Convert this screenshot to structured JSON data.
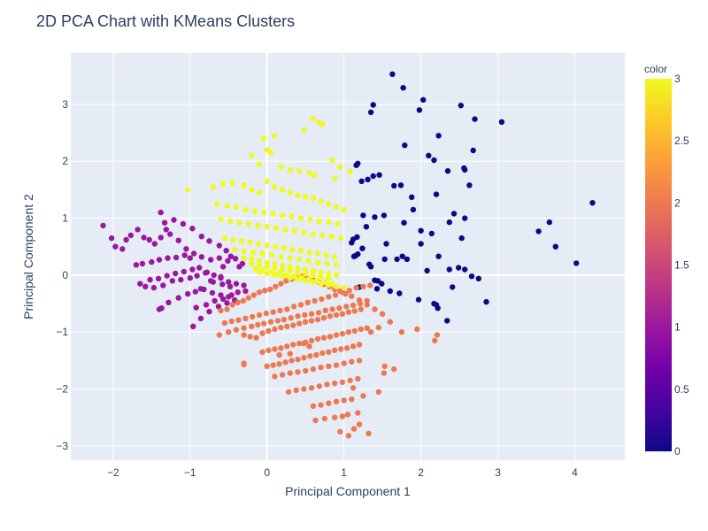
{
  "chart_data": {
    "type": "scatter",
    "title": "2D PCA Chart with KMeans Clusters",
    "xlabel": "Principal Component 1",
    "ylabel": "Principal Component 2",
    "xlim": [
      -2.55,
      4.65
    ],
    "ylim": [
      -3.25,
      3.9
    ],
    "x_ticks": [
      -2,
      -1,
      0,
      1,
      2,
      3,
      4
    ],
    "y_ticks": [
      -3,
      -2,
      -1,
      0,
      1,
      2,
      3
    ],
    "x_tick_labels": [
      "−2",
      "−1",
      "0",
      "1",
      "2",
      "3",
      "4"
    ],
    "y_tick_labels": [
      "−3",
      "−2",
      "−1",
      "0",
      "1",
      "2",
      "3"
    ],
    "grid": true,
    "colorbar": {
      "title": "color",
      "min": 0,
      "max": 3,
      "ticks": [
        0,
        0.5,
        1,
        1.5,
        2,
        2.5,
        3
      ],
      "tick_labels": [
        "0",
        "0.5",
        "1",
        "1.5",
        "2",
        "2.5",
        "3"
      ],
      "colorscale": [
        "#0d0887",
        "#46039f",
        "#7201a8",
        "#9c179e",
        "#bd3786",
        "#d8576b",
        "#ed7953",
        "#fb9f3a",
        "#fdca26",
        "#f0f921"
      ]
    },
    "series": [
      {
        "cluster": 0,
        "color": "#0d0887",
        "x": [
          1.63,
          1.77,
          2.03,
          1.38,
          1.35,
          1.98,
          2.52,
          2.7,
          3.05,
          2.68,
          1.79,
          2.23,
          2.1,
          1.16,
          1.18,
          1.46,
          1.38,
          1.65,
          1.74,
          1.88,
          2.35,
          2.17,
          2.57,
          2.63,
          2.56,
          2.2,
          1.23,
          1.31,
          1.25,
          1.4,
          1.52,
          1.9,
          1.78,
          2.0,
          1.55,
          2.43,
          2.57,
          2.37,
          2.14,
          2.0,
          2.53,
          2.23,
          1.1,
          1.12,
          1.17,
          1.24,
          1.18,
          1.15,
          1.33,
          1.53,
          1.69,
          1.76,
          1.82,
          1.44,
          1.4,
          2.08,
          2.37,
          2.49,
          2.57,
          2.66,
          2.75,
          2.41,
          2.17,
          2.2,
          2.34,
          2.85,
          3.53,
          3.67,
          3.75,
          4.02,
          4.23,
          1.43,
          1.6,
          1.72,
          1.13,
          1.2,
          1.35,
          1.97,
          2.22,
          1.29,
          1.49
        ],
        "y": [
          3.53,
          3.29,
          3.08,
          2.99,
          2.86,
          2.9,
          2.98,
          2.74,
          2.69,
          2.19,
          2.28,
          2.45,
          2.1,
          1.93,
          1.96,
          1.76,
          1.74,
          1.57,
          1.58,
          1.37,
          1.83,
          2.02,
          1.85,
          1.58,
          1.88,
          1.42,
          1.65,
          1.68,
          1.05,
          1.02,
          1.05,
          1.15,
          0.92,
          0.78,
          0.55,
          1.08,
          1.0,
          0.93,
          0.73,
          0.55,
          0.65,
          0.33,
          0.57,
          0.63,
          0.67,
          0.47,
          0.37,
          0.34,
          0.19,
          0.28,
          0.28,
          0.33,
          0.28,
          -0.1,
          -0.09,
          0.08,
          0.1,
          0.13,
          0.1,
          -0.02,
          -0.06,
          -0.21,
          -0.5,
          -0.52,
          -0.8,
          -0.47,
          0.77,
          0.93,
          0.5,
          0.21,
          1.27,
          -0.24,
          -0.28,
          -0.32,
          0.33,
          -0.21,
          0.15,
          -0.43,
          -0.58,
          0.85,
          -0.15
        ]
      },
      {
        "cluster": 1,
        "color": "#9c179e",
        "x": [
          -2.13,
          -2.02,
          -1.97,
          -1.88,
          -1.83,
          -1.77,
          -1.68,
          -1.6,
          -1.53,
          -1.46,
          -1.38,
          -1.31,
          -1.21,
          -1.09,
          -0.97,
          -0.85,
          -0.75,
          -0.62,
          -0.53,
          -1.38,
          -1.33,
          -1.26,
          -1.15,
          -1.05,
          -1.7,
          -1.62,
          -1.5,
          -1.4,
          -1.29,
          -1.18,
          -1.07,
          -0.95,
          -0.85,
          -0.73,
          -0.62,
          -0.51,
          -0.41,
          -0.32,
          -1.65,
          -1.52,
          -1.41,
          -1.3,
          -1.19,
          -1.08,
          -0.97,
          -0.88,
          -0.78,
          -0.69,
          -0.6,
          -0.5,
          -0.4,
          -0.3,
          -1.58,
          -1.47,
          -1.35,
          -1.23,
          -1.12,
          -1.0,
          -0.91,
          -0.8,
          -0.7,
          -0.58,
          -0.48,
          -0.38,
          -0.28,
          -1.4,
          -1.28,
          -1.15,
          -1.03,
          -0.93,
          -0.82,
          -0.71,
          -0.6,
          -0.5,
          -0.92,
          -0.79,
          -0.68,
          -0.57,
          -0.46,
          -0.96,
          -0.86,
          -0.75,
          -0.63,
          -0.52,
          -0.42,
          -0.86,
          -0.73,
          -0.6,
          -1.37,
          -0.47,
          -0.36,
          -1.0,
          -0.57
        ],
        "y": [
          0.87,
          0.65,
          0.5,
          0.46,
          0.62,
          0.7,
          0.8,
          0.66,
          0.62,
          0.55,
          0.66,
          0.8,
          0.97,
          0.9,
          0.82,
          0.68,
          0.6,
          0.52,
          0.43,
          1.1,
          0.92,
          0.72,
          0.61,
          0.46,
          0.18,
          0.2,
          0.23,
          0.27,
          0.3,
          0.31,
          0.35,
          0.38,
          0.32,
          0.27,
          0.3,
          0.25,
          0.29,
          0.2,
          -0.15,
          -0.08,
          -0.06,
          -0.01,
          0.03,
          0.06,
          0.1,
          0.13,
          0.05,
          0.0,
          -0.05,
          -0.12,
          -0.15,
          -0.18,
          -0.2,
          -0.22,
          -0.18,
          -0.1,
          -0.08,
          -0.05,
          -0.01,
          0.04,
          -0.12,
          -0.16,
          -0.2,
          -0.3,
          -0.28,
          -0.6,
          -0.48,
          -0.4,
          -0.33,
          -0.29,
          -0.25,
          -0.31,
          -0.35,
          -0.38,
          -0.57,
          -0.52,
          -0.45,
          -0.42,
          -0.35,
          -0.9,
          -0.76,
          -0.64,
          -0.55,
          -0.49,
          -0.44,
          -0.24,
          -0.1,
          -0.03,
          -0.58,
          0.33,
          0.15,
          0.3,
          0.15
        ]
      },
      {
        "cluster": 2,
        "color": "#ed7953",
        "x": [
          -0.6,
          -0.52,
          -0.45,
          -0.38,
          -0.31,
          -0.24,
          -0.17,
          -0.1,
          -0.03,
          0.04,
          0.11,
          0.18,
          0.25,
          0.32,
          0.39,
          0.46,
          0.53,
          0.6,
          0.67,
          0.74,
          0.81,
          0.88,
          0.95,
          1.02,
          1.1,
          1.2,
          1.3,
          1.4,
          1.5,
          -0.55,
          -0.46,
          -0.37,
          -0.28,
          -0.19,
          -0.1,
          -0.01,
          0.08,
          0.17,
          0.26,
          0.35,
          0.44,
          0.53,
          0.62,
          0.71,
          0.8,
          0.89,
          0.98,
          1.07,
          1.16,
          1.25,
          1.34,
          -0.62,
          -0.5,
          -0.4,
          -0.3,
          -0.2,
          -0.12,
          -0.04,
          0.05,
          0.14,
          0.22,
          0.31,
          0.4,
          0.49,
          0.58,
          0.67,
          0.76,
          0.85,
          0.94,
          1.03,
          1.12,
          1.21,
          1.3,
          -0.3,
          -0.22,
          -0.14,
          -0.06,
          0.02,
          0.1,
          0.18,
          0.26,
          0.34,
          0.42,
          0.5,
          0.58,
          0.66,
          0.74,
          0.82,
          0.9,
          0.98,
          1.06,
          1.14,
          1.22,
          -0.06,
          0.02,
          0.1,
          0.18,
          0.26,
          0.34,
          0.42,
          0.5,
          0.58,
          0.66,
          0.74,
          0.82,
          0.9,
          0.98,
          1.06,
          1.14,
          1.22,
          1.3,
          0.0,
          0.08,
          0.16,
          0.24,
          0.32,
          0.4,
          0.48,
          0.56,
          0.64,
          0.72,
          0.8,
          0.88,
          0.96,
          1.04,
          1.12,
          1.2,
          0.1,
          0.2,
          0.3,
          0.4,
          0.5,
          0.6,
          0.7,
          0.8,
          0.9,
          1.0,
          1.1,
          1.2,
          0.28,
          0.38,
          0.48,
          0.58,
          0.68,
          0.78,
          0.88,
          0.98,
          1.08,
          1.18,
          0.6,
          0.7,
          0.8,
          0.9,
          1.0,
          1.1,
          0.63,
          0.75,
          0.88,
          0.98,
          1.05,
          1.18,
          0.95,
          1.06,
          1.13,
          1.2,
          1.32,
          1.45,
          1.53,
          1.65,
          1.75,
          1.95,
          2.18,
          2.21,
          -0.3,
          -0.3,
          0.48,
          0.55,
          1.35,
          1.45,
          1.6,
          1.12,
          1.52,
          1.25,
          0.3,
          0.16
        ],
        "y": [
          -0.62,
          -0.6,
          -0.52,
          -0.48,
          -0.45,
          -0.4,
          -0.35,
          -0.3,
          -0.27,
          -0.25,
          -0.2,
          -0.15,
          -0.1,
          -0.07,
          -0.05,
          -0.02,
          -0.06,
          -0.09,
          -0.12,
          -0.16,
          -0.2,
          -0.25,
          -0.28,
          -0.33,
          -0.37,
          -0.44,
          -0.52,
          -0.6,
          -0.68,
          -0.84,
          -0.81,
          -0.79,
          -0.76,
          -0.73,
          -0.7,
          -0.67,
          -0.65,
          -0.62,
          -0.6,
          -0.55,
          -0.52,
          -0.48,
          -0.45,
          -0.42,
          -0.38,
          -0.35,
          -0.3,
          -0.27,
          -0.22,
          -0.2,
          -0.18,
          -1.05,
          -1.0,
          -0.96,
          -0.93,
          -0.9,
          -0.87,
          -0.85,
          -0.82,
          -0.8,
          -0.78,
          -0.75,
          -0.72,
          -0.7,
          -0.68,
          -0.66,
          -0.62,
          -0.6,
          -0.58,
          -0.55,
          -0.53,
          -0.5,
          -0.45,
          -1.05,
          -1.08,
          -1.1,
          -1.02,
          -0.98,
          -0.95,
          -0.92,
          -0.9,
          -0.88,
          -0.85,
          -0.82,
          -0.8,
          -0.78,
          -0.75,
          -0.72,
          -0.7,
          -0.68,
          -0.65,
          -0.63,
          -0.6,
          -1.35,
          -1.32,
          -1.3,
          -1.28,
          -1.25,
          -1.22,
          -1.2,
          -1.18,
          -1.15,
          -1.12,
          -1.1,
          -1.08,
          -1.05,
          -1.03,
          -1.0,
          -0.98,
          -0.95,
          -0.93,
          -1.6,
          -1.58,
          -1.56,
          -1.53,
          -1.5,
          -1.48,
          -1.45,
          -1.42,
          -1.4,
          -1.37,
          -1.35,
          -1.32,
          -1.3,
          -1.28,
          -1.25,
          -1.22,
          -1.78,
          -1.75,
          -1.72,
          -1.7,
          -1.68,
          -1.65,
          -1.62,
          -1.6,
          -1.58,
          -1.55,
          -1.52,
          -1.5,
          -2.05,
          -2.02,
          -2.0,
          -1.98,
          -1.95,
          -1.92,
          -1.9,
          -1.88,
          -1.85,
          -1.82,
          -2.3,
          -2.28,
          -2.25,
          -2.22,
          -2.2,
          -2.18,
          -2.55,
          -2.52,
          -2.5,
          -2.48,
          -2.45,
          -2.42,
          -2.75,
          -2.82,
          -2.7,
          -2.62,
          -2.78,
          -2.05,
          -1.6,
          -1.65,
          -1.0,
          -0.95,
          -1.15,
          -1.05,
          -1.57,
          -1.55,
          -1.2,
          -1.25,
          -1.0,
          -0.92,
          -0.82,
          -1.98,
          -1.72,
          -2.12,
          -1.38,
          -1.4
        ]
      },
      {
        "cluster": 3,
        "color": "#f0f921",
        "x": [
          0.6,
          0.68,
          0.72,
          0.48,
          0.1,
          -0.05,
          0.0,
          0.05,
          -0.2,
          -0.1,
          0.18,
          0.3,
          0.42,
          0.55,
          0.62,
          0.95,
          1.08,
          0.85,
          0.88,
          -1.03,
          -0.7,
          -0.57,
          -0.45,
          -0.3,
          -0.2,
          -0.1,
          0.0,
          0.1,
          0.2,
          0.3,
          0.4,
          0.5,
          0.6,
          0.7,
          0.8,
          0.9,
          1.0,
          -0.65,
          -0.52,
          -0.4,
          -0.28,
          -0.16,
          -0.04,
          0.08,
          0.2,
          0.32,
          0.44,
          0.56,
          0.68,
          0.8,
          0.92,
          -0.6,
          -0.48,
          -0.36,
          -0.24,
          -0.12,
          0.0,
          0.12,
          0.24,
          0.36,
          0.48,
          0.6,
          0.72,
          0.84,
          0.96,
          -0.55,
          -0.44,
          -0.33,
          -0.22,
          -0.11,
          0.0,
          0.11,
          0.22,
          0.33,
          0.44,
          0.55,
          0.66,
          0.77,
          0.88,
          -0.42,
          -0.3,
          -0.18,
          -0.06,
          0.06,
          0.18,
          0.3,
          0.42,
          0.54,
          0.66,
          0.78,
          0.9,
          -0.3,
          -0.2,
          -0.1,
          0.0,
          0.1,
          0.2,
          0.3,
          0.4,
          0.5,
          0.6,
          0.7,
          0.8,
          0.9,
          -0.2,
          -0.1,
          0.0,
          0.1,
          0.2,
          0.3,
          0.4,
          0.5,
          0.6,
          0.7,
          0.8,
          -0.15,
          -0.05,
          0.05,
          0.15,
          0.25,
          0.35,
          0.45,
          0.55,
          0.65,
          0.75,
          0.85,
          -0.1,
          0.0,
          0.1,
          0.2,
          0.3,
          0.4,
          0.5,
          0.6,
          0.7,
          0.8,
          0.9,
          1.0
        ],
        "y": [
          2.75,
          2.68,
          2.65,
          2.55,
          2.45,
          2.4,
          2.2,
          2.15,
          2.1,
          1.95,
          1.9,
          1.85,
          1.83,
          1.8,
          1.75,
          1.9,
          1.82,
          2.02,
          1.7,
          1.5,
          1.55,
          1.6,
          1.62,
          1.58,
          1.5,
          1.45,
          1.65,
          1.55,
          1.5,
          1.45,
          1.4,
          1.38,
          1.35,
          1.3,
          1.25,
          1.2,
          1.15,
          1.25,
          1.22,
          1.2,
          1.15,
          1.12,
          1.1,
          1.08,
          1.05,
          1.03,
          1.0,
          0.98,
          0.95,
          0.93,
          0.9,
          0.98,
          0.95,
          0.92,
          0.9,
          0.87,
          0.85,
          0.83,
          0.8,
          0.78,
          0.75,
          0.72,
          0.7,
          0.68,
          0.65,
          0.65,
          0.62,
          0.6,
          0.58,
          0.55,
          0.52,
          0.5,
          0.48,
          0.45,
          0.43,
          0.4,
          0.38,
          0.35,
          0.32,
          0.45,
          0.42,
          0.4,
          0.38,
          0.35,
          0.32,
          0.3,
          0.28,
          0.25,
          0.22,
          0.2,
          0.18,
          0.3,
          0.28,
          0.25,
          0.22,
          0.2,
          0.17,
          0.15,
          0.12,
          0.1,
          0.08,
          0.05,
          0.03,
          0.0,
          0.2,
          0.17,
          0.15,
          0.12,
          0.1,
          0.08,
          0.05,
          0.03,
          0.0,
          -0.02,
          -0.05,
          0.1,
          0.08,
          0.05,
          0.03,
          0.0,
          -0.02,
          -0.05,
          -0.07,
          -0.1,
          -0.12,
          -0.15,
          0.05,
          0.03,
          0.0,
          -0.02,
          -0.05,
          -0.07,
          -0.1,
          -0.12,
          -0.15,
          -0.17,
          -0.2,
          -0.22
        ]
      }
    ]
  }
}
